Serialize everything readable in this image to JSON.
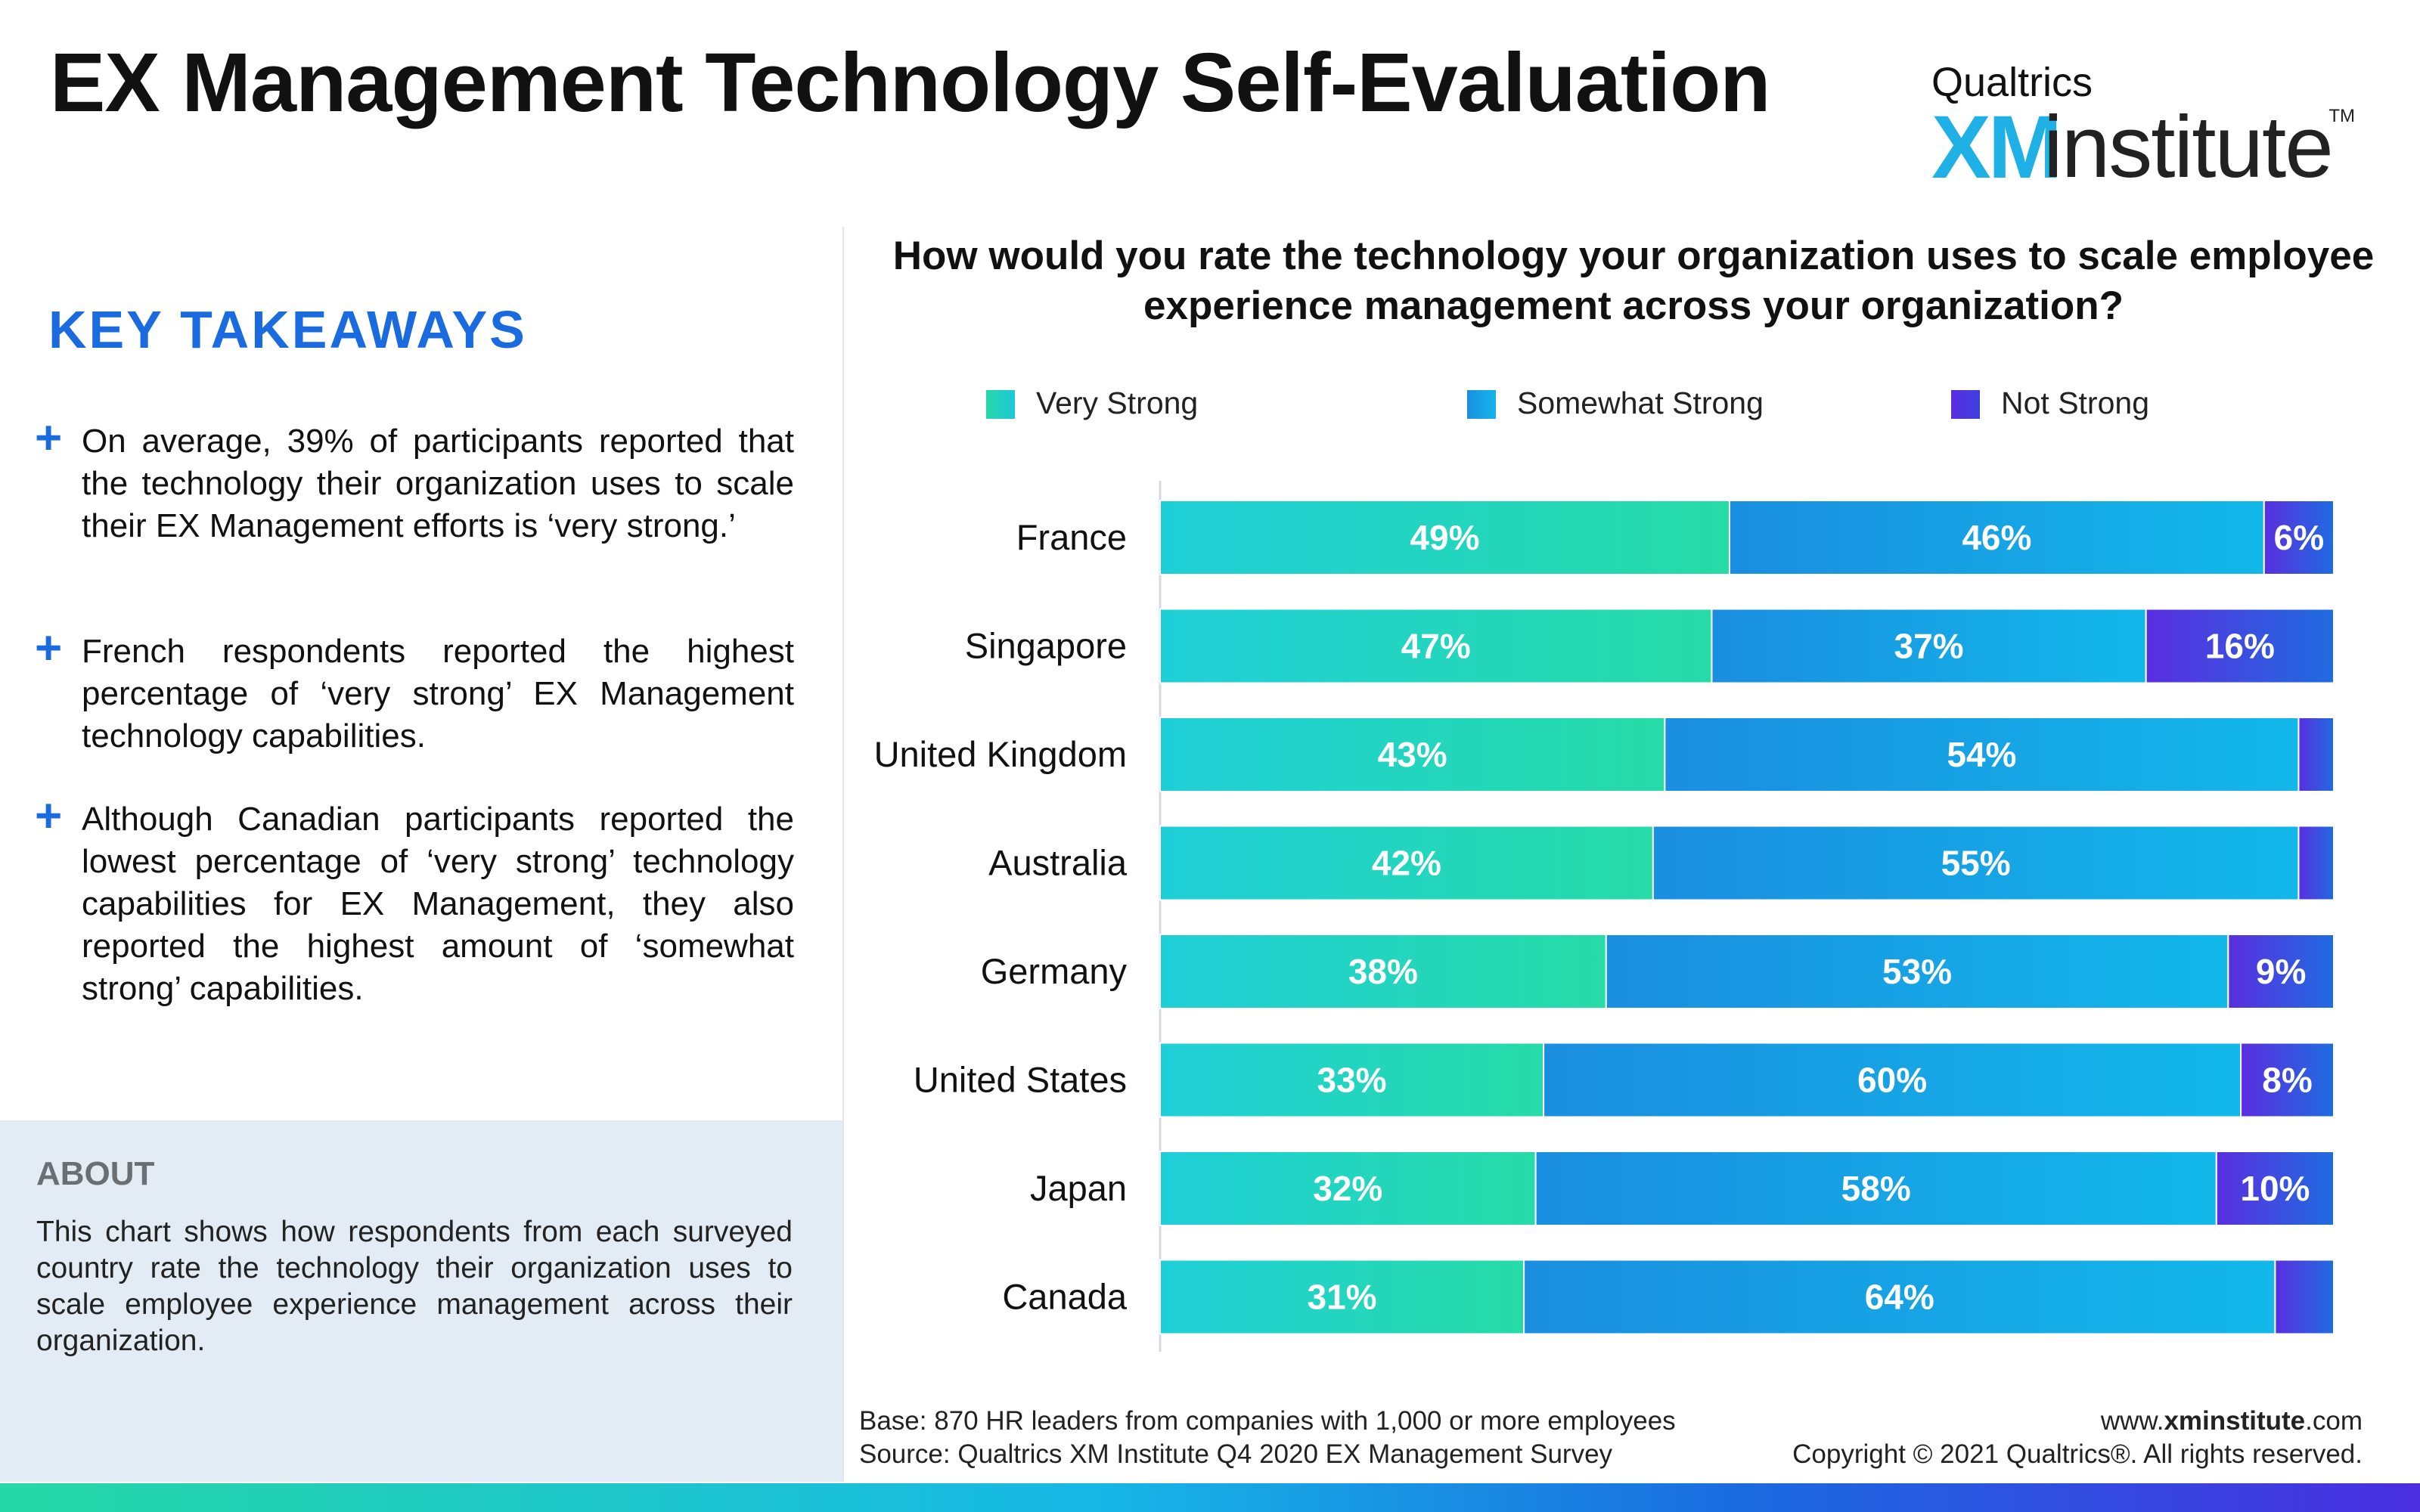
{
  "header": {
    "title": "EX Management Technology Self-Evaluation",
    "logo": {
      "brand": "Qualtrics",
      "xm": "XM",
      "institute": "institute",
      "tm": "TM"
    }
  },
  "takeaways": {
    "title": "KEY TAKEAWAYS",
    "items": [
      "On average, 39% of participants reported that the technology their organization uses to scale their EX Management efforts is ‘very strong.’",
      "French respondents reported the highest percentage of ‘very strong’ EX Management technology capabilities.",
      "Although Canadian participants reported the lowest percentage of ‘very strong’ technology capabilities for EX Management, they also reported the highest amount of ‘somewhat strong’ capabilities."
    ]
  },
  "about": {
    "title": "ABOUT",
    "text": "This chart shows how respondents from each surveyed country rate the technology their organization uses to scale employee experience management across their organization."
  },
  "chart_data": {
    "type": "bar",
    "orientation": "horizontal",
    "stacked": true,
    "title": "How would you rate the technology your organization uses to scale employee experience management across your organization?",
    "categories": [
      "France",
      "Singapore",
      "United Kingdom",
      "Australia",
      "Germany",
      "United States",
      "Japan",
      "Canada"
    ],
    "series": [
      {
        "name": "Very Strong",
        "values": [
          49,
          47,
          43,
          42,
          38,
          33,
          32,
          31
        ],
        "labels": [
          "49%",
          "47%",
          "43%",
          "42%",
          "38%",
          "33%",
          "32%",
          "31%"
        ],
        "color": "#20cfd0"
      },
      {
        "name": "Somewhat Strong",
        "values": [
          46,
          37,
          54,
          55,
          53,
          60,
          58,
          64
        ],
        "labels": [
          "46%",
          "37%",
          "54%",
          "55%",
          "53%",
          "60%",
          "58%",
          "64%"
        ],
        "color": "#0f9fe6"
      },
      {
        "name": "Not Strong",
        "values": [
          6,
          16,
          3,
          3,
          9,
          8,
          10,
          5
        ],
        "labels": [
          "6%",
          "16%",
          "",
          "",
          "9%",
          "8%",
          "10%",
          ""
        ],
        "color": "#4a35de"
      }
    ],
    "legend_position": "top",
    "grid": false
  },
  "footer": {
    "base": "Base: 870 HR leaders from companies with 1,000 or more employees",
    "source": "Source: Qualtrics XM Institute Q4 2020  EX Management Survey",
    "url_prefix": "www.",
    "url_bold": "xminstitute",
    "url_suffix": ".com",
    "copyright": "Copyright © 2021 Qualtrics®. All rights reserved."
  }
}
